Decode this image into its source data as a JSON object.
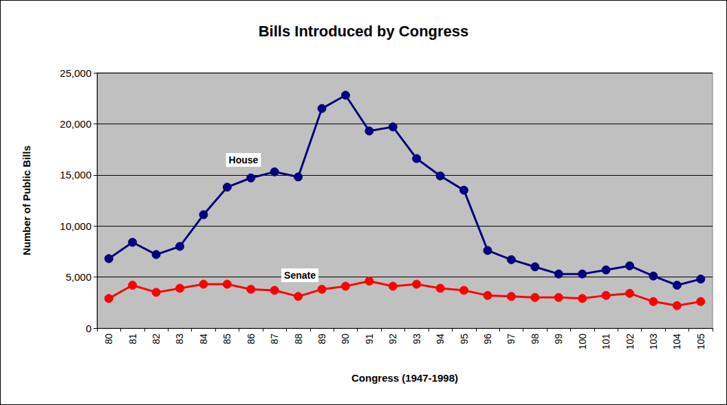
{
  "chart_data": {
    "type": "line",
    "title": "Bills Introduced by Congress",
    "x_label": "Congress (1947-1998)",
    "y_label": "Number of Public Bills",
    "categories": [
      "80",
      "81",
      "82",
      "83",
      "84",
      "85",
      "86",
      "87",
      "88",
      "89",
      "90",
      "91",
      "92",
      "93",
      "94",
      "95",
      "96",
      "97",
      "98",
      "99",
      "100",
      "101",
      "102",
      "103",
      "104",
      "105"
    ],
    "series": [
      {
        "name": "House",
        "color": "#000080",
        "marker": "circle",
        "values": [
          6800,
          8400,
          7200,
          8000,
          11100,
          13800,
          14700,
          15300,
          14800,
          21500,
          22800,
          19300,
          19700,
          16600,
          14900,
          13500,
          7600,
          6700,
          6000,
          5300,
          5300,
          5700,
          6100,
          5100,
          4200,
          4800
        ]
      },
      {
        "name": "Senate",
        "color": "#ff0000",
        "marker": "circle",
        "values": [
          2900,
          4200,
          3500,
          3900,
          4300,
          4300,
          3800,
          3700,
          3100,
          3800,
          4100,
          4600,
          4100,
          4300,
          3900,
          3700,
          3200,
          3100,
          3000,
          3000,
          2900,
          3200,
          3400,
          2600,
          2200,
          2600
        ]
      }
    ],
    "ylim": [
      0,
      25000
    ],
    "yticks": [
      0,
      {
        "value": 5000,
        "label": "5,000"
      },
      {
        "value": 10000,
        "label": "10,000"
      },
      {
        "value": 15000,
        "label": "15,000"
      },
      {
        "value": 20000,
        "label": "20,000"
      },
      {
        "value": 25000,
        "label": "25,000"
      }
    ],
    "grid": true
  }
}
